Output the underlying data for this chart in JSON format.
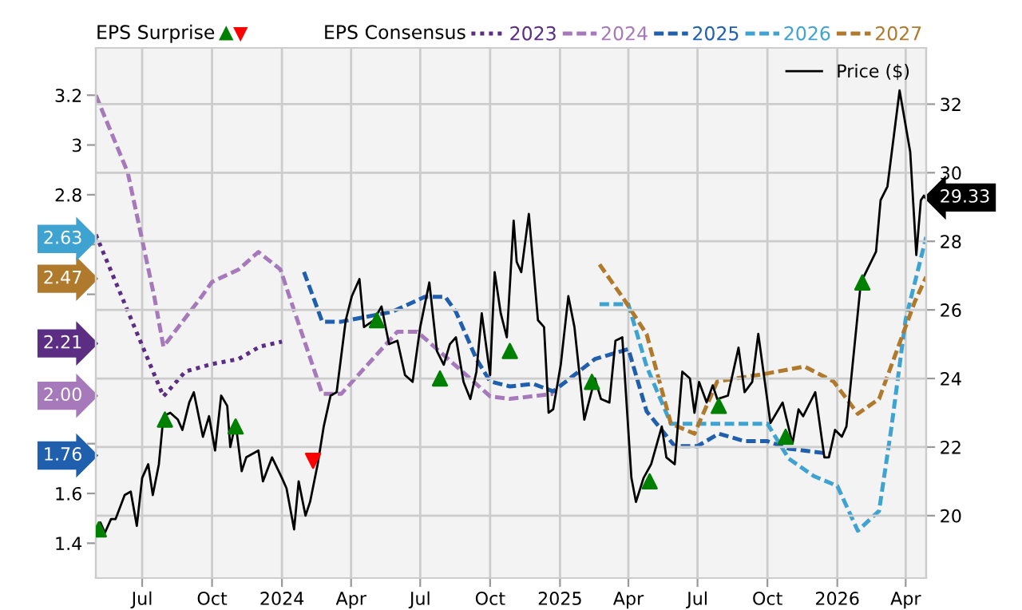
{
  "chart_data": {
    "type": "line",
    "legend_title": "EPS Consensus",
    "annotations": [
      "EPS Surprise"
    ],
    "xlim": [
      "2023-05-01",
      "2026-04-28"
    ],
    "xticks": [
      {
        "value": "2023-07-01",
        "label": "Jul"
      },
      {
        "value": "2023-10-01",
        "label": "Oct"
      },
      {
        "value": "2024-01-01",
        "label": "2024"
      },
      {
        "value": "2024-04-01",
        "label": "Apr"
      },
      {
        "value": "2024-07-01",
        "label": "Jul"
      },
      {
        "value": "2024-10-01",
        "label": "Oct"
      },
      {
        "value": "2025-01-01",
        "label": "2025"
      },
      {
        "value": "2025-04-01",
        "label": "Apr"
      },
      {
        "value": "2025-07-01",
        "label": "Jul"
      },
      {
        "value": "2025-10-01",
        "label": "Oct"
      },
      {
        "value": "2026-01-01",
        "label": "2026"
      },
      {
        "value": "2026-04-01",
        "label": "Apr"
      }
    ],
    "ylim": [
      1.26,
      3.39
    ],
    "yticks": [
      1.4,
      1.6,
      {
        "value": 1.76,
        "label": "1.76"
      },
      {
        "value": 1.8,
        "label": null
      },
      {
        "value": 2.0,
        "label": null
      },
      {
        "value": 2.0,
        "label": "2.00"
      },
      {
        "value": 2.2,
        "label": null
      },
      {
        "value": 2.21,
        "label": "2.21"
      },
      {
        "value": 2.4,
        "label": null
      },
      {
        "value": 2.47,
        "label": "2.47"
      },
      {
        "value": 2.6,
        "label": null
      },
      {
        "value": 2.63,
        "label": "2.63"
      },
      2.8,
      3,
      3.2
    ],
    "y2lim": [
      18.18,
      33.64
    ],
    "y2ticks": [
      20,
      22,
      24,
      26,
      28,
      {
        "value": 29.33,
        "label": "29.33"
      },
      30,
      32
    ],
    "grid": true,
    "legend": "top",
    "series": [
      {
        "name": "2023",
        "color": "#5b2d83",
        "line_style": "dotted",
        "x": [
          "2023-05-01",
          "2023-07-29",
          "2023-08-27",
          "2023-10-01",
          "2023-11-05",
          "2023-12-03",
          "2024-01-01"
        ],
        "values": [
          2.64,
          1.99,
          2.09,
          2.12,
          2.14,
          2.19,
          2.21
        ]
      },
      {
        "name": "2024",
        "color": "#a679bb",
        "line_style": "dashed",
        "x": [
          "2023-05-01",
          "2023-06-12",
          "2023-07-17",
          "2023-07-29",
          "2023-09-17",
          "2023-10-01",
          "2023-11-05",
          "2023-12-01",
          "2023-12-30",
          "2024-01-11",
          "2024-02-23",
          "2024-03-19",
          "2024-06-01",
          "2024-06-27",
          "2024-08-29",
          "2024-10-01",
          "2024-10-27",
          "2024-12-23"
        ],
        "values": [
          3.2,
          2.89,
          2.39,
          2.19,
          2.39,
          2.45,
          2.5,
          2.57,
          2.5,
          2.39,
          2.0,
          2.0,
          2.25,
          2.25,
          2.08,
          1.99,
          1.98,
          2.0
        ]
      },
      {
        "name": "2025",
        "color": "#1f5fae",
        "line_style": "dashed",
        "x": [
          "2024-01-30",
          "2024-02-23",
          "2024-03-19",
          "2024-05-25",
          "2024-07-07",
          "2024-08-03",
          "2024-08-17",
          "2024-09-13",
          "2024-10-01",
          "2024-10-27",
          "2024-11-27",
          "2024-12-23",
          "2025-02-16",
          "2025-04-01",
          "2025-04-25",
          "2025-06-01",
          "2025-07-01",
          "2025-07-29",
          "2025-09-01",
          "2025-10-01",
          "2025-10-29",
          "2025-12-21"
        ],
        "values": [
          2.49,
          2.29,
          2.29,
          2.33,
          2.39,
          2.39,
          2.33,
          2.14,
          2.05,
          2.03,
          2.04,
          2.01,
          2.14,
          2.18,
          1.93,
          1.79,
          1.79,
          1.84,
          1.81,
          1.81,
          1.78,
          1.76
        ]
      },
      {
        "name": "2026",
        "color": "#3fa3d1",
        "line_style": "dashed",
        "x": [
          "2025-02-22",
          "2025-04-01",
          "2025-04-25",
          "2025-05-27",
          "2025-07-01",
          "2025-08-16",
          "2025-10-01",
          "2025-10-29",
          "2025-12-01",
          "2026-01-01",
          "2026-01-28",
          "2026-02-25",
          "2026-03-13",
          "2026-04-01",
          "2026-04-28"
        ],
        "values": [
          2.36,
          2.36,
          2.11,
          1.88,
          1.88,
          1.88,
          1.88,
          1.74,
          1.67,
          1.63,
          1.45,
          1.53,
          1.86,
          2.3,
          2.63
        ]
      },
      {
        "name": "2027",
        "color": "#b07a2c",
        "line_style": "dashed",
        "x": [
          "2025-02-22",
          "2025-03-24",
          "2025-04-25",
          "2025-05-27",
          "2025-06-27",
          "2025-07-27",
          "2025-09-27",
          "2025-11-19",
          "2025-12-27",
          "2026-01-28",
          "2026-02-25",
          "2026-04-13",
          "2026-04-28"
        ],
        "values": [
          2.52,
          2.39,
          2.24,
          1.88,
          1.84,
          2.05,
          2.08,
          2.11,
          2.05,
          1.92,
          1.98,
          2.37,
          2.47
        ]
      },
      {
        "name": "Price ($)",
        "color": "#000000",
        "axis": "y2",
        "line_style": "solid",
        "x": [
          "2023-05-01",
          "2023-05-07",
          "2023-05-13",
          "2023-05-21",
          "2023-05-27",
          "2023-06-08",
          "2023-06-16",
          "2023-06-24",
          "2023-07-01",
          "2023-07-09",
          "2023-07-15",
          "2023-07-23",
          "2023-07-29",
          "2023-08-07",
          "2023-08-17",
          "2023-08-23",
          "2023-09-01",
          "2023-09-07",
          "2023-09-19",
          "2023-09-27",
          "2023-10-05",
          "2023-10-13",
          "2023-10-21",
          "2023-10-25",
          "2023-11-01",
          "2023-11-09",
          "2023-11-15",
          "2023-12-01",
          "2023-12-07",
          "2023-12-19",
          "2024-01-01",
          "2024-01-07",
          "2024-01-17",
          "2024-01-23",
          "2024-02-01",
          "2024-02-07",
          "2024-02-17",
          "2024-02-25",
          "2024-03-05",
          "2024-03-13",
          "2024-03-25",
          "2024-04-02",
          "2024-04-12",
          "2024-04-18",
          "2024-05-01",
          "2024-05-11",
          "2024-05-21",
          "2024-06-01",
          "2024-06-11",
          "2024-06-21",
          "2024-07-01",
          "2024-07-13",
          "2024-07-23",
          "2024-08-01",
          "2024-08-09",
          "2024-08-17",
          "2024-08-27",
          "2024-09-05",
          "2024-09-13",
          "2024-09-20",
          "2024-10-01",
          "2024-10-07",
          "2024-10-15",
          "2024-10-23",
          "2024-11-01",
          "2024-11-05",
          "2024-11-11",
          "2024-11-21",
          "2024-12-03",
          "2024-12-11",
          "2024-12-17",
          "2024-12-23",
          "2025-01-02",
          "2025-01-12",
          "2025-01-20",
          "2025-02-02",
          "2025-02-16",
          "2025-02-24",
          "2025-03-07",
          "2025-03-15",
          "2025-03-24",
          "2025-04-05",
          "2025-04-11",
          "2025-04-21",
          "2025-05-01",
          "2025-05-15",
          "2025-05-21",
          "2025-06-01",
          "2025-06-11",
          "2025-06-21",
          "2025-06-27",
          "2025-07-03",
          "2025-07-13",
          "2025-07-21",
          "2025-07-27",
          "2025-08-10",
          "2025-08-24",
          "2025-09-01",
          "2025-09-11",
          "2025-09-19",
          "2025-10-05",
          "2025-10-21",
          "2025-11-03",
          "2025-11-11",
          "2025-11-17",
          "2025-12-03",
          "2025-12-15",
          "2025-12-21",
          "2025-12-29",
          "2026-01-07",
          "2026-01-13",
          "2026-02-01",
          "2026-02-21",
          "2026-02-27",
          "2026-03-08",
          "2026-03-24",
          "2026-04-07",
          "2026-04-15",
          "2026-04-21",
          "2026-04-25"
        ],
        "values": [
          19.6,
          19.8,
          19.5,
          19.9,
          19.9,
          20.6,
          20.7,
          19.7,
          21.1,
          21.5,
          20.6,
          21.5,
          22.9,
          23.0,
          22.8,
          22.5,
          23.3,
          23.6,
          22.3,
          22.9,
          21.9,
          23.5,
          23.2,
          22.0,
          22.7,
          21.3,
          21.7,
          21.9,
          21.0,
          21.7,
          21.1,
          20.8,
          19.6,
          21.0,
          20.0,
          20.4,
          21.5,
          22.6,
          23.5,
          23.6,
          25.7,
          26.4,
          26.9,
          25.5,
          25.7,
          26.1,
          25.0,
          25.1,
          24.1,
          23.9,
          25.5,
          26.8,
          24.8,
          24.4,
          25.0,
          25.2,
          23.9,
          23.4,
          24.2,
          25.9,
          24.1,
          27.1,
          25.9,
          25.2,
          28.6,
          27.4,
          27.1,
          28.8,
          25.7,
          25.5,
          23.0,
          23.1,
          24.4,
          26.4,
          25.5,
          22.8,
          24.0,
          23.4,
          23.3,
          25.1,
          25.2,
          21.1,
          20.4,
          21.1,
          21.5,
          22.6,
          21.7,
          21.5,
          24.2,
          24.0,
          23.0,
          23.9,
          23.3,
          23.8,
          23.4,
          23.5,
          24.9,
          23.6,
          23.9,
          25.3,
          22.7,
          23.3,
          22.1,
          23.1,
          22.9,
          23.6,
          21.7,
          21.7,
          22.5,
          22.3,
          22.6,
          26.8,
          27.7,
          29.2,
          29.6,
          32.4,
          30.6,
          27.6,
          29.2,
          29.33
        ]
      },
      {
        "type": "scatter",
        "color": "#008000",
        "axis": "y2",
        "marker": "triangle",
        "x": [
          "2023-05-05",
          "2023-07-31",
          "2023-11-01",
          "2024-05-05",
          "2024-07-27",
          "2024-10-27",
          "2025-02-12",
          "2025-04-29",
          "2025-07-29",
          "2025-10-25",
          "2026-02-03"
        ],
        "values": [
          19.6,
          22.8,
          22.6,
          25.7,
          24.0,
          24.8,
          23.9,
          21.0,
          23.2,
          22.3,
          26.8
        ]
      },
      {
        "type": "scatter",
        "color": "#ff0000",
        "axis": "y2",
        "marker": "triangle-down",
        "x": [
          "2024-02-11"
        ],
        "values": [
          21.6
        ]
      }
    ]
  }
}
